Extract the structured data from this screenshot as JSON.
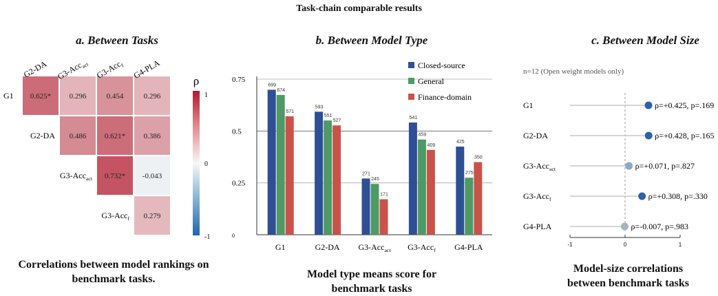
{
  "main_title": "Task-chain comparable results",
  "panel_a": {
    "title": "a. Between Tasks",
    "caption_lines": [
      "Correlations between model rankings on",
      "benchmark tasks."
    ],
    "colorbar_label": "ρ",
    "colorbar_ticks": [
      "1",
      "0",
      "-1"
    ]
  },
  "panel_b": {
    "title": "b. Between Model Type",
    "caption_lines": [
      "Model type means score for",
      "benchmark tasks"
    ]
  },
  "panel_c": {
    "title": "c. Between Model Size",
    "subtitle": "n=12 (Open weight models only)",
    "caption_lines": [
      "Model-size correlations",
      "between benchmark tasks"
    ]
  },
  "colors": {
    "closed_source": "#2e4f95",
    "general": "#4e9a64",
    "finance_domain": "#c9534a",
    "dot_strong": "#2f62a6",
    "dot_weak": "#8aa9c9",
    "dot_zero": "#a9b4bf"
  },
  "chart_data": [
    {
      "type": "heatmap",
      "title": "a. Between Tasks",
      "rows": [
        {
          "label": "G1",
          "sub": ""
        },
        {
          "label": "G2-DA",
          "sub": ""
        },
        {
          "label": "G3-Acc",
          "sub": "act"
        },
        {
          "label": "G3-Acc",
          "sub": "f"
        }
      ],
      "columns": [
        {
          "label": "G2-DA",
          "sub": ""
        },
        {
          "label": "G3-Acc",
          "sub": "act"
        },
        {
          "label": "G3-Acc",
          "sub": "f"
        },
        {
          "label": "G4-PLA",
          "sub": ""
        }
      ],
      "cells": [
        {
          "row": 0,
          "col": 0,
          "value": 0.625,
          "label": "0.625*"
        },
        {
          "row": 0,
          "col": 1,
          "value": 0.296,
          "label": "0.296"
        },
        {
          "row": 0,
          "col": 2,
          "value": 0.454,
          "label": "0.454"
        },
        {
          "row": 0,
          "col": 3,
          "value": 0.296,
          "label": "0.296"
        },
        {
          "row": 1,
          "col": 1,
          "value": 0.486,
          "label": "0.486"
        },
        {
          "row": 1,
          "col": 2,
          "value": 0.621,
          "label": "0.621*"
        },
        {
          "row": 1,
          "col": 3,
          "value": 0.386,
          "label": "0.386"
        },
        {
          "row": 2,
          "col": 2,
          "value": 0.732,
          "label": "0.732*"
        },
        {
          "row": 2,
          "col": 3,
          "value": -0.043,
          "label": "-0.043"
        },
        {
          "row": 3,
          "col": 3,
          "value": 0.279,
          "label": "0.279"
        }
      ],
      "color_range": [
        -1,
        1
      ]
    },
    {
      "type": "bar",
      "title": "b. Between Model Type",
      "categories": [
        {
          "label": "G1",
          "sub": ""
        },
        {
          "label": "G2-DA",
          "sub": ""
        },
        {
          "label": "G3-Acc",
          "sub": "act"
        },
        {
          "label": "G3-Acc",
          "sub": "f"
        },
        {
          "label": "G4-PLA",
          "sub": ""
        }
      ],
      "series": [
        {
          "name": "Closed-source",
          "values": [
            0.699,
            0.593,
            0.271,
            0.541,
            0.425
          ],
          "labels": [
            "699",
            "593",
            "271",
            "541",
            "425"
          ]
        },
        {
          "name": "General",
          "values": [
            0.674,
            0.551,
            0.245,
            0.459,
            0.275
          ],
          "labels": [
            "674",
            "551",
            "245",
            "459",
            "275"
          ]
        },
        {
          "name": "Finance-domain",
          "values": [
            0.571,
            0.527,
            0.171,
            0.409,
            0.35
          ],
          "labels": [
            "571",
            "527",
            "171",
            "409",
            "350"
          ]
        }
      ],
      "ylim": [
        0,
        0.75
      ],
      "yticks": [
        {
          "value": 0,
          "label": "0"
        },
        {
          "value": 0.25,
          "label": "0.25"
        },
        {
          "value": 0.5,
          "label": "0.5"
        },
        {
          "value": 0.75,
          "label": "0.75"
        }
      ],
      "legend": "top-right"
    },
    {
      "type": "scatter",
      "title": "c. Between Model Size",
      "categories": [
        {
          "label": "G1",
          "sub": ""
        },
        {
          "label": "G2-DA",
          "sub": ""
        },
        {
          "label": "G3-Acc",
          "sub": "act"
        },
        {
          "label": "G3-Acc",
          "sub": "f"
        },
        {
          "label": "G4-PLA",
          "sub": ""
        }
      ],
      "points": [
        {
          "rho": 0.425,
          "label": "ρ=+0.425,  p=.169"
        },
        {
          "rho": 0.428,
          "label": "ρ=+0.428,  p=.165"
        },
        {
          "rho": 0.071,
          "label": "ρ=+0.071,  p=.827"
        },
        {
          "rho": 0.308,
          "label": "ρ=+0.308,  p=.330"
        },
        {
          "rho": -0.007,
          "label": "ρ=-0.007,  p=.983"
        }
      ],
      "xlim": [
        -1,
        1
      ],
      "xticks": [
        "-1",
        "0",
        "1"
      ]
    }
  ]
}
